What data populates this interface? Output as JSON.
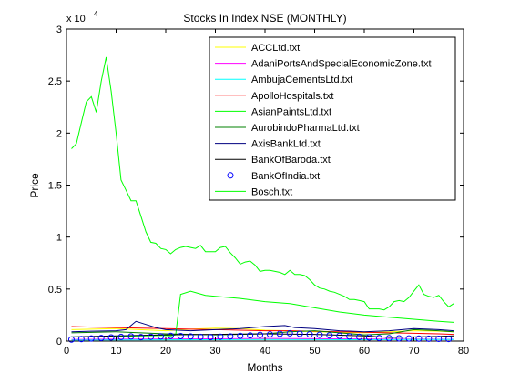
{
  "chart_data": {
    "type": "line",
    "title": "Stocks In Index NSE (MONTHLY)",
    "xlabel": "Months",
    "ylabel": "Price",
    "y_exponent_label": "x 10",
    "y_exponent_power": "4",
    "xlim": [
      0,
      80
    ],
    "ylim": [
      0,
      30000
    ],
    "x_ticks": [
      0,
      10,
      20,
      30,
      40,
      50,
      60,
      70,
      80
    ],
    "y_ticks": [
      0,
      5000,
      10000,
      15000,
      20000,
      25000,
      30000
    ],
    "x_tick_labels": [
      "0",
      "10",
      "20",
      "30",
      "40",
      "50",
      "60",
      "70",
      "80"
    ],
    "y_tick_labels": [
      "0",
      "0.5",
      "1",
      "1.5",
      "2",
      "2.5",
      "3"
    ],
    "grid": false,
    "legend_position": "top-right",
    "series": [
      {
        "name": "ACCLtd.txt",
        "color": "#ffff00",
        "marker": "none",
        "x": [
          1,
          10,
          20,
          25,
          30,
          35,
          40,
          45,
          50,
          55,
          60,
          65,
          70,
          75,
          78
        ],
        "y": [
          1100,
          1200,
          1000,
          1150,
          1250,
          1200,
          1050,
          1000,
          900,
          850,
          800,
          900,
          1000,
          950,
          900
        ]
      },
      {
        "name": "AdaniPortsAndSpecialEconomicZone.txt",
        "color": "#ff00ff",
        "marker": "none",
        "x": [
          1,
          10,
          20,
          30,
          40,
          50,
          60,
          70,
          78
        ],
        "y": [
          150,
          180,
          200,
          220,
          250,
          230,
          200,
          180,
          170
        ]
      },
      {
        "name": "AmbujaCementsLtd.txt",
        "color": "#00ffff",
        "marker": "none",
        "x": [
          1,
          10,
          20,
          30,
          40,
          50,
          60,
          70,
          78
        ],
        "y": [
          100,
          110,
          120,
          130,
          150,
          140,
          130,
          150,
          160
        ]
      },
      {
        "name": "ApolloHospitals.txt",
        "color": "#ff0000",
        "marker": "none",
        "x": [
          1,
          5,
          10,
          15,
          20,
          25,
          30,
          35,
          40,
          45,
          50,
          55,
          60,
          65,
          70,
          75,
          78
        ],
        "y": [
          1400,
          1350,
          1300,
          1250,
          1200,
          1150,
          1100,
          1050,
          1000,
          1000,
          950,
          900,
          850,
          800,
          750,
          700,
          650
        ]
      },
      {
        "name": "AsianPaintsLtd.txt",
        "color": "#00ff00",
        "marker": "none",
        "x": [
          1,
          5,
          10,
          15,
          20,
          21,
          22,
          23,
          25,
          28,
          30,
          35,
          40,
          45,
          50,
          55,
          60,
          65,
          70,
          75,
          78
        ],
        "y": [
          400,
          420,
          450,
          500,
          550,
          500,
          600,
          4500,
          4800,
          4400,
          4300,
          4100,
          3800,
          3600,
          3200,
          2800,
          2500,
          2300,
          2100,
          1900,
          1800
        ]
      },
      {
        "name": "AurobindoPharmaLtd.txt",
        "color": "#008000",
        "marker": "none",
        "x": [
          1,
          10,
          20,
          30,
          40,
          45,
          50,
          55,
          60,
          65,
          70,
          75,
          78
        ],
        "y": [
          800,
          900,
          700,
          600,
          700,
          900,
          1000,
          800,
          600,
          700,
          1100,
          1000,
          900
        ]
      },
      {
        "name": "AxisBankLtd.txt",
        "color": "#000080",
        "marker": "none",
        "x": [
          1,
          5,
          10,
          12,
          14,
          16,
          18,
          20,
          25,
          30,
          35,
          40,
          44,
          46,
          50,
          55,
          60,
          65,
          70,
          75,
          78
        ],
        "y": [
          900,
          950,
          1000,
          1100,
          1900,
          1600,
          1300,
          1100,
          1000,
          1100,
          1200,
          1400,
          1500,
          1300,
          1200,
          1000,
          900,
          1000,
          1200,
          1100,
          1000
        ]
      },
      {
        "name": "BankOfBaroda.txt",
        "color": "#000000",
        "marker": "none",
        "x": [
          1,
          10,
          20,
          30,
          40,
          50,
          60,
          65,
          70,
          75,
          78
        ],
        "y": [
          400,
          500,
          600,
          650,
          700,
          650,
          500,
          350,
          400,
          450,
          500
        ]
      },
      {
        "name": "BankOfIndia.txt",
        "color": "#0000ff",
        "marker": "circle",
        "x": [
          1,
          3,
          5,
          7,
          9,
          11,
          13,
          15,
          17,
          19,
          21,
          23,
          25,
          27,
          29,
          31,
          33,
          35,
          37,
          39,
          41,
          43,
          45,
          47,
          49,
          51,
          53,
          55,
          57,
          59,
          61,
          63,
          65,
          67,
          69,
          71,
          73,
          75,
          77
        ],
        "y": [
          150,
          200,
          250,
          300,
          350,
          400,
          450,
          380,
          420,
          450,
          500,
          480,
          450,
          400,
          380,
          420,
          450,
          500,
          550,
          600,
          650,
          700,
          750,
          700,
          650,
          600,
          550,
          500,
          450,
          400,
          350,
          300,
          280,
          260,
          250,
          240,
          230,
          220,
          210
        ]
      },
      {
        "name": "Bosch.txt",
        "color": "#00ff00",
        "marker": "none",
        "x": [
          1,
          2,
          3,
          4,
          5,
          6,
          7,
          8,
          9,
          10,
          11,
          12,
          13,
          14,
          15,
          16,
          17,
          18,
          19,
          20,
          21,
          22,
          23,
          24,
          25,
          26,
          27,
          28,
          29,
          30,
          31,
          32,
          33,
          34,
          35,
          36,
          37,
          38,
          39,
          40,
          41,
          42,
          43,
          44,
          45,
          46,
          47,
          48,
          49,
          50,
          51,
          52,
          53,
          54,
          55,
          56,
          57,
          58,
          59,
          60,
          61,
          62,
          63,
          64,
          65,
          66,
          67,
          68,
          69,
          70,
          71,
          72,
          73,
          74,
          75,
          76,
          77,
          78
        ],
        "y": [
          18500,
          19000,
          21000,
          23000,
          23500,
          22000,
          25000,
          27300,
          24000,
          20000,
          15500,
          14500,
          13500,
          13500,
          12000,
          10500,
          9500,
          9400,
          8900,
          8800,
          8400,
          8800,
          9000,
          9100,
          9000,
          8900,
          9200,
          8600,
          8600,
          8600,
          9000,
          9100,
          8500,
          8000,
          7400,
          7600,
          7700,
          7300,
          6700,
          6800,
          6800,
          6700,
          6600,
          6400,
          6800,
          6400,
          6400,
          6300,
          5900,
          5400,
          5100,
          5000,
          4800,
          4700,
          4500,
          4300,
          4000,
          4000,
          3900,
          3800,
          3100,
          3100,
          3100,
          3000,
          3300,
          3800,
          3900,
          3800,
          4200,
          4800,
          5400,
          4500,
          4300,
          4200,
          4400,
          3800,
          3300,
          3600
        ]
      }
    ]
  }
}
